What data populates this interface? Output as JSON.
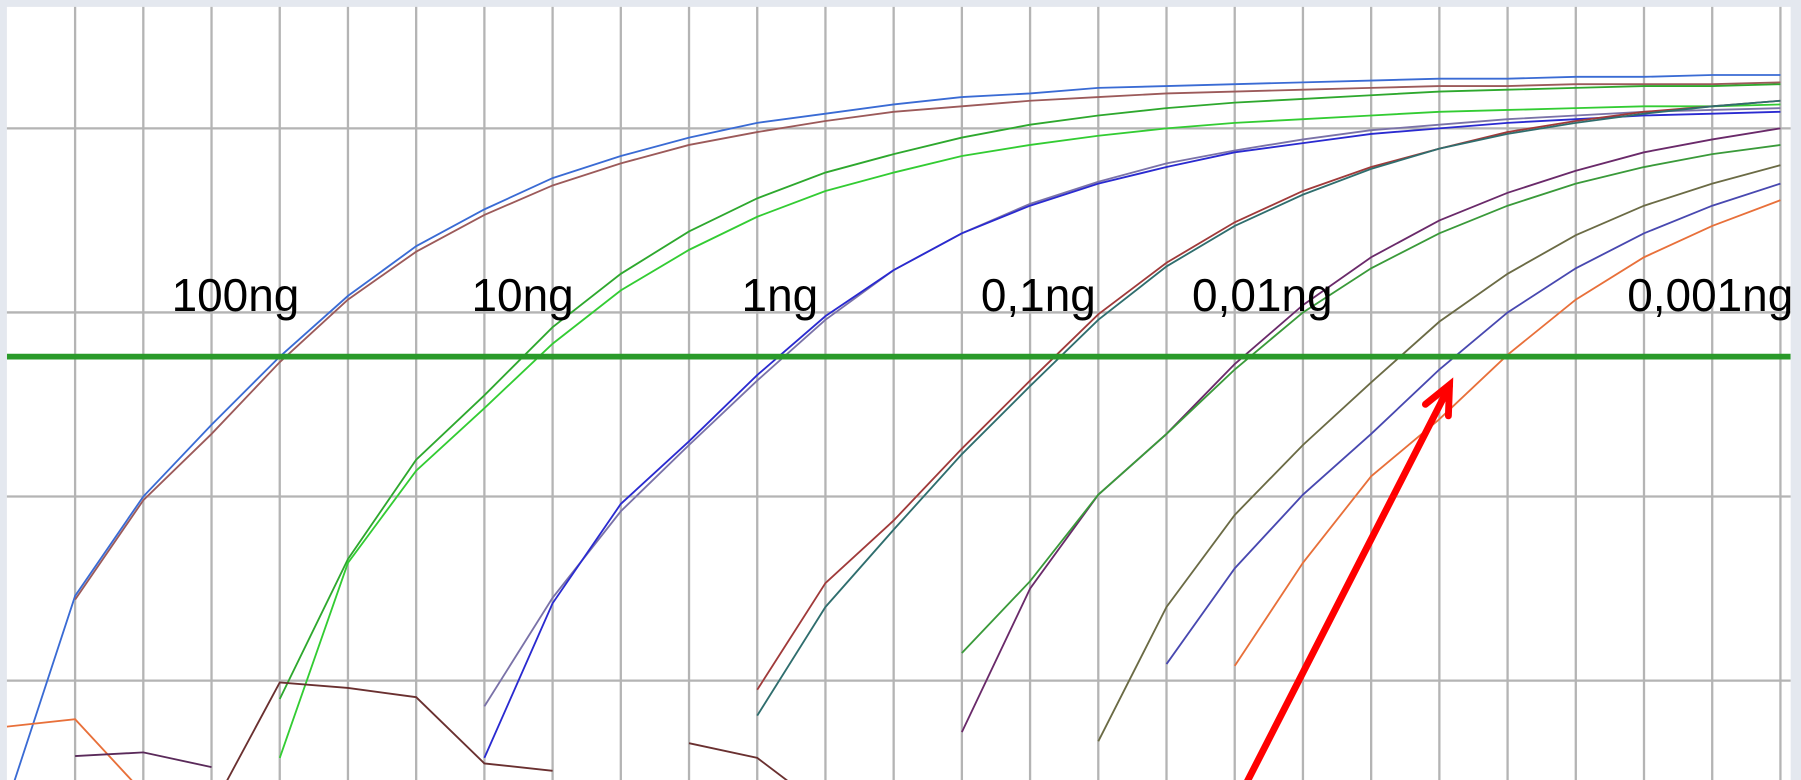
{
  "chart_data": {
    "type": "line",
    "annotations": [
      "100ng",
      "10ng",
      "1ng",
      "0,1ng",
      "0,01ng",
      "0,001ng"
    ],
    "x": [
      0,
      1,
      2,
      3,
      4,
      5,
      6,
      7,
      8,
      9,
      10,
      11,
      12,
      13,
      14,
      15,
      16,
      17,
      18,
      19,
      20,
      21,
      22,
      23,
      24,
      25,
      26
    ],
    "xlim": [
      0,
      26.15
    ],
    "ylim": [
      0.46,
      4.66
    ],
    "xticks": [
      1,
      2,
      3,
      4,
      5,
      6,
      7,
      8,
      9,
      10,
      11,
      12,
      13,
      14,
      15,
      16,
      17,
      18,
      19,
      20,
      21,
      22,
      23,
      24,
      25,
      26
    ],
    "yticks": [
      1,
      2,
      3,
      4
    ],
    "grid": true,
    "threshold": 2.76,
    "threshold_color": "#2a9a2a",
    "series": [
      {
        "color": "#3a6bd4",
        "values": [
          0.33,
          1.46,
          2.0,
          2.39,
          2.76,
          3.09,
          3.36,
          3.56,
          3.73,
          3.85,
          3.95,
          4.03,
          4.08,
          4.13,
          4.17,
          4.19,
          4.22,
          4.23,
          4.24,
          4.25,
          4.26,
          4.27,
          4.27,
          4.28,
          4.28,
          4.29,
          4.29
        ]
      },
      {
        "color": "#9c5a5a",
        "values": [
          null,
          1.44,
          1.98,
          2.34,
          2.73,
          3.07,
          3.33,
          3.53,
          3.69,
          3.81,
          3.91,
          3.98,
          4.04,
          4.09,
          4.12,
          4.15,
          4.17,
          4.19,
          4.2,
          4.21,
          4.22,
          4.23,
          4.23,
          4.24,
          4.24,
          4.24,
          4.25
        ]
      },
      {
        "color": "#2ea82e",
        "values": [
          null,
          null,
          null,
          null,
          0.9,
          1.66,
          2.2,
          2.55,
          2.92,
          3.21,
          3.44,
          3.62,
          3.76,
          3.86,
          3.95,
          4.02,
          4.07,
          4.11,
          4.14,
          4.16,
          4.18,
          4.2,
          4.21,
          4.22,
          4.23,
          4.23,
          4.24
        ]
      },
      {
        "color": "#33cc33",
        "values": [
          null,
          null,
          null,
          null,
          0.58,
          1.64,
          2.14,
          2.48,
          2.83,
          3.12,
          3.34,
          3.52,
          3.66,
          3.76,
          3.85,
          3.91,
          3.96,
          4.0,
          4.03,
          4.05,
          4.07,
          4.09,
          4.1,
          4.11,
          4.12,
          4.12,
          4.13
        ]
      },
      {
        "color": "#7a72a8",
        "values": [
          null,
          null,
          null,
          null,
          null,
          null,
          null,
          0.86,
          1.45,
          1.92,
          2.28,
          2.63,
          2.96,
          3.23,
          3.43,
          3.59,
          3.71,
          3.81,
          3.88,
          3.94,
          3.99,
          4.02,
          4.05,
          4.07,
          4.09,
          4.1,
          4.11
        ]
      },
      {
        "color": "#2a2ad0",
        "values": [
          null,
          null,
          null,
          null,
          null,
          null,
          null,
          0.58,
          1.42,
          1.96,
          2.3,
          2.66,
          2.98,
          3.23,
          3.43,
          3.58,
          3.7,
          3.79,
          3.87,
          3.92,
          3.97,
          4.0,
          4.03,
          4.05,
          4.07,
          4.08,
          4.09
        ]
      },
      {
        "color": "#a03a3a",
        "values": [
          null,
          null,
          null,
          null,
          null,
          null,
          null,
          null,
          null,
          null,
          null,
          0.95,
          1.53,
          1.87,
          2.26,
          2.63,
          2.99,
          3.27,
          3.49,
          3.66,
          3.79,
          3.89,
          3.98,
          4.04,
          4.09,
          4.12,
          4.15
        ]
      },
      {
        "color": "#2f6e6e",
        "values": [
          null,
          null,
          null,
          null,
          null,
          null,
          null,
          null,
          null,
          null,
          null,
          0.81,
          1.4,
          1.82,
          2.23,
          2.6,
          2.96,
          3.25,
          3.47,
          3.64,
          3.78,
          3.89,
          3.97,
          4.03,
          4.08,
          4.12,
          4.15
        ]
      },
      {
        "color": "#6a2a6a",
        "values": [
          null,
          null,
          null,
          null,
          null,
          null,
          null,
          null,
          null,
          null,
          null,
          null,
          null,
          null,
          0.72,
          1.5,
          2.01,
          2.34,
          2.72,
          3.04,
          3.3,
          3.5,
          3.65,
          3.77,
          3.87,
          3.94,
          4.0
        ]
      },
      {
        "color": "#3a9a3a",
        "values": [
          null,
          null,
          null,
          null,
          null,
          null,
          null,
          null,
          null,
          null,
          null,
          null,
          null,
          null,
          1.15,
          1.54,
          2.01,
          2.34,
          2.69,
          3.0,
          3.24,
          3.43,
          3.58,
          3.7,
          3.79,
          3.86,
          3.91
        ]
      },
      {
        "color": "#6b6b45",
        "values": [
          null,
          null,
          null,
          null,
          null,
          null,
          null,
          null,
          null,
          null,
          null,
          null,
          null,
          null,
          null,
          null,
          0.67,
          1.4,
          1.9,
          2.28,
          2.62,
          2.95,
          3.21,
          3.42,
          3.58,
          3.7,
          3.8
        ]
      },
      {
        "color": "#4848b0",
        "values": [
          null,
          null,
          null,
          null,
          null,
          null,
          null,
          null,
          null,
          null,
          null,
          null,
          null,
          null,
          null,
          null,
          null,
          1.09,
          1.61,
          2.01,
          2.34,
          2.69,
          3.0,
          3.24,
          3.43,
          3.58,
          3.7
        ]
      },
      {
        "color": "#e8703a",
        "values": [
          null,
          null,
          null,
          null,
          null,
          null,
          null,
          null,
          null,
          null,
          null,
          null,
          null,
          null,
          null,
          null,
          null,
          null,
          1.08,
          1.64,
          2.11,
          2.42,
          2.77,
          3.07,
          3.3,
          3.47,
          3.61
        ]
      },
      {
        "color": "#e8703a",
        "values": [
          0.75,
          0.79,
          0.39,
          null,
          null,
          null,
          null,
          null,
          null,
          null,
          null,
          null,
          null,
          null,
          null,
          null,
          null,
          null,
          null,
          null,
          null,
          null,
          null,
          null,
          null,
          null,
          null
        ]
      },
      {
        "color": "#5a2a5a",
        "values": [
          null,
          0.59,
          0.61,
          0.53,
          null,
          null,
          null,
          null,
          null,
          null,
          null,
          null,
          null,
          null,
          null,
          null,
          null,
          null,
          null,
          null,
          null,
          null,
          null,
          null,
          null,
          null,
          null
        ]
      },
      {
        "color": "#6a3030",
        "values": [
          null,
          null,
          null,
          0.3,
          0.99,
          0.96,
          0.91,
          0.55,
          0.51,
          null,
          0.66,
          0.58,
          0.3,
          null,
          null,
          null,
          null,
          null,
          null,
          null,
          null,
          null,
          null,
          null,
          null,
          null,
          null
        ]
      }
    ]
  }
}
